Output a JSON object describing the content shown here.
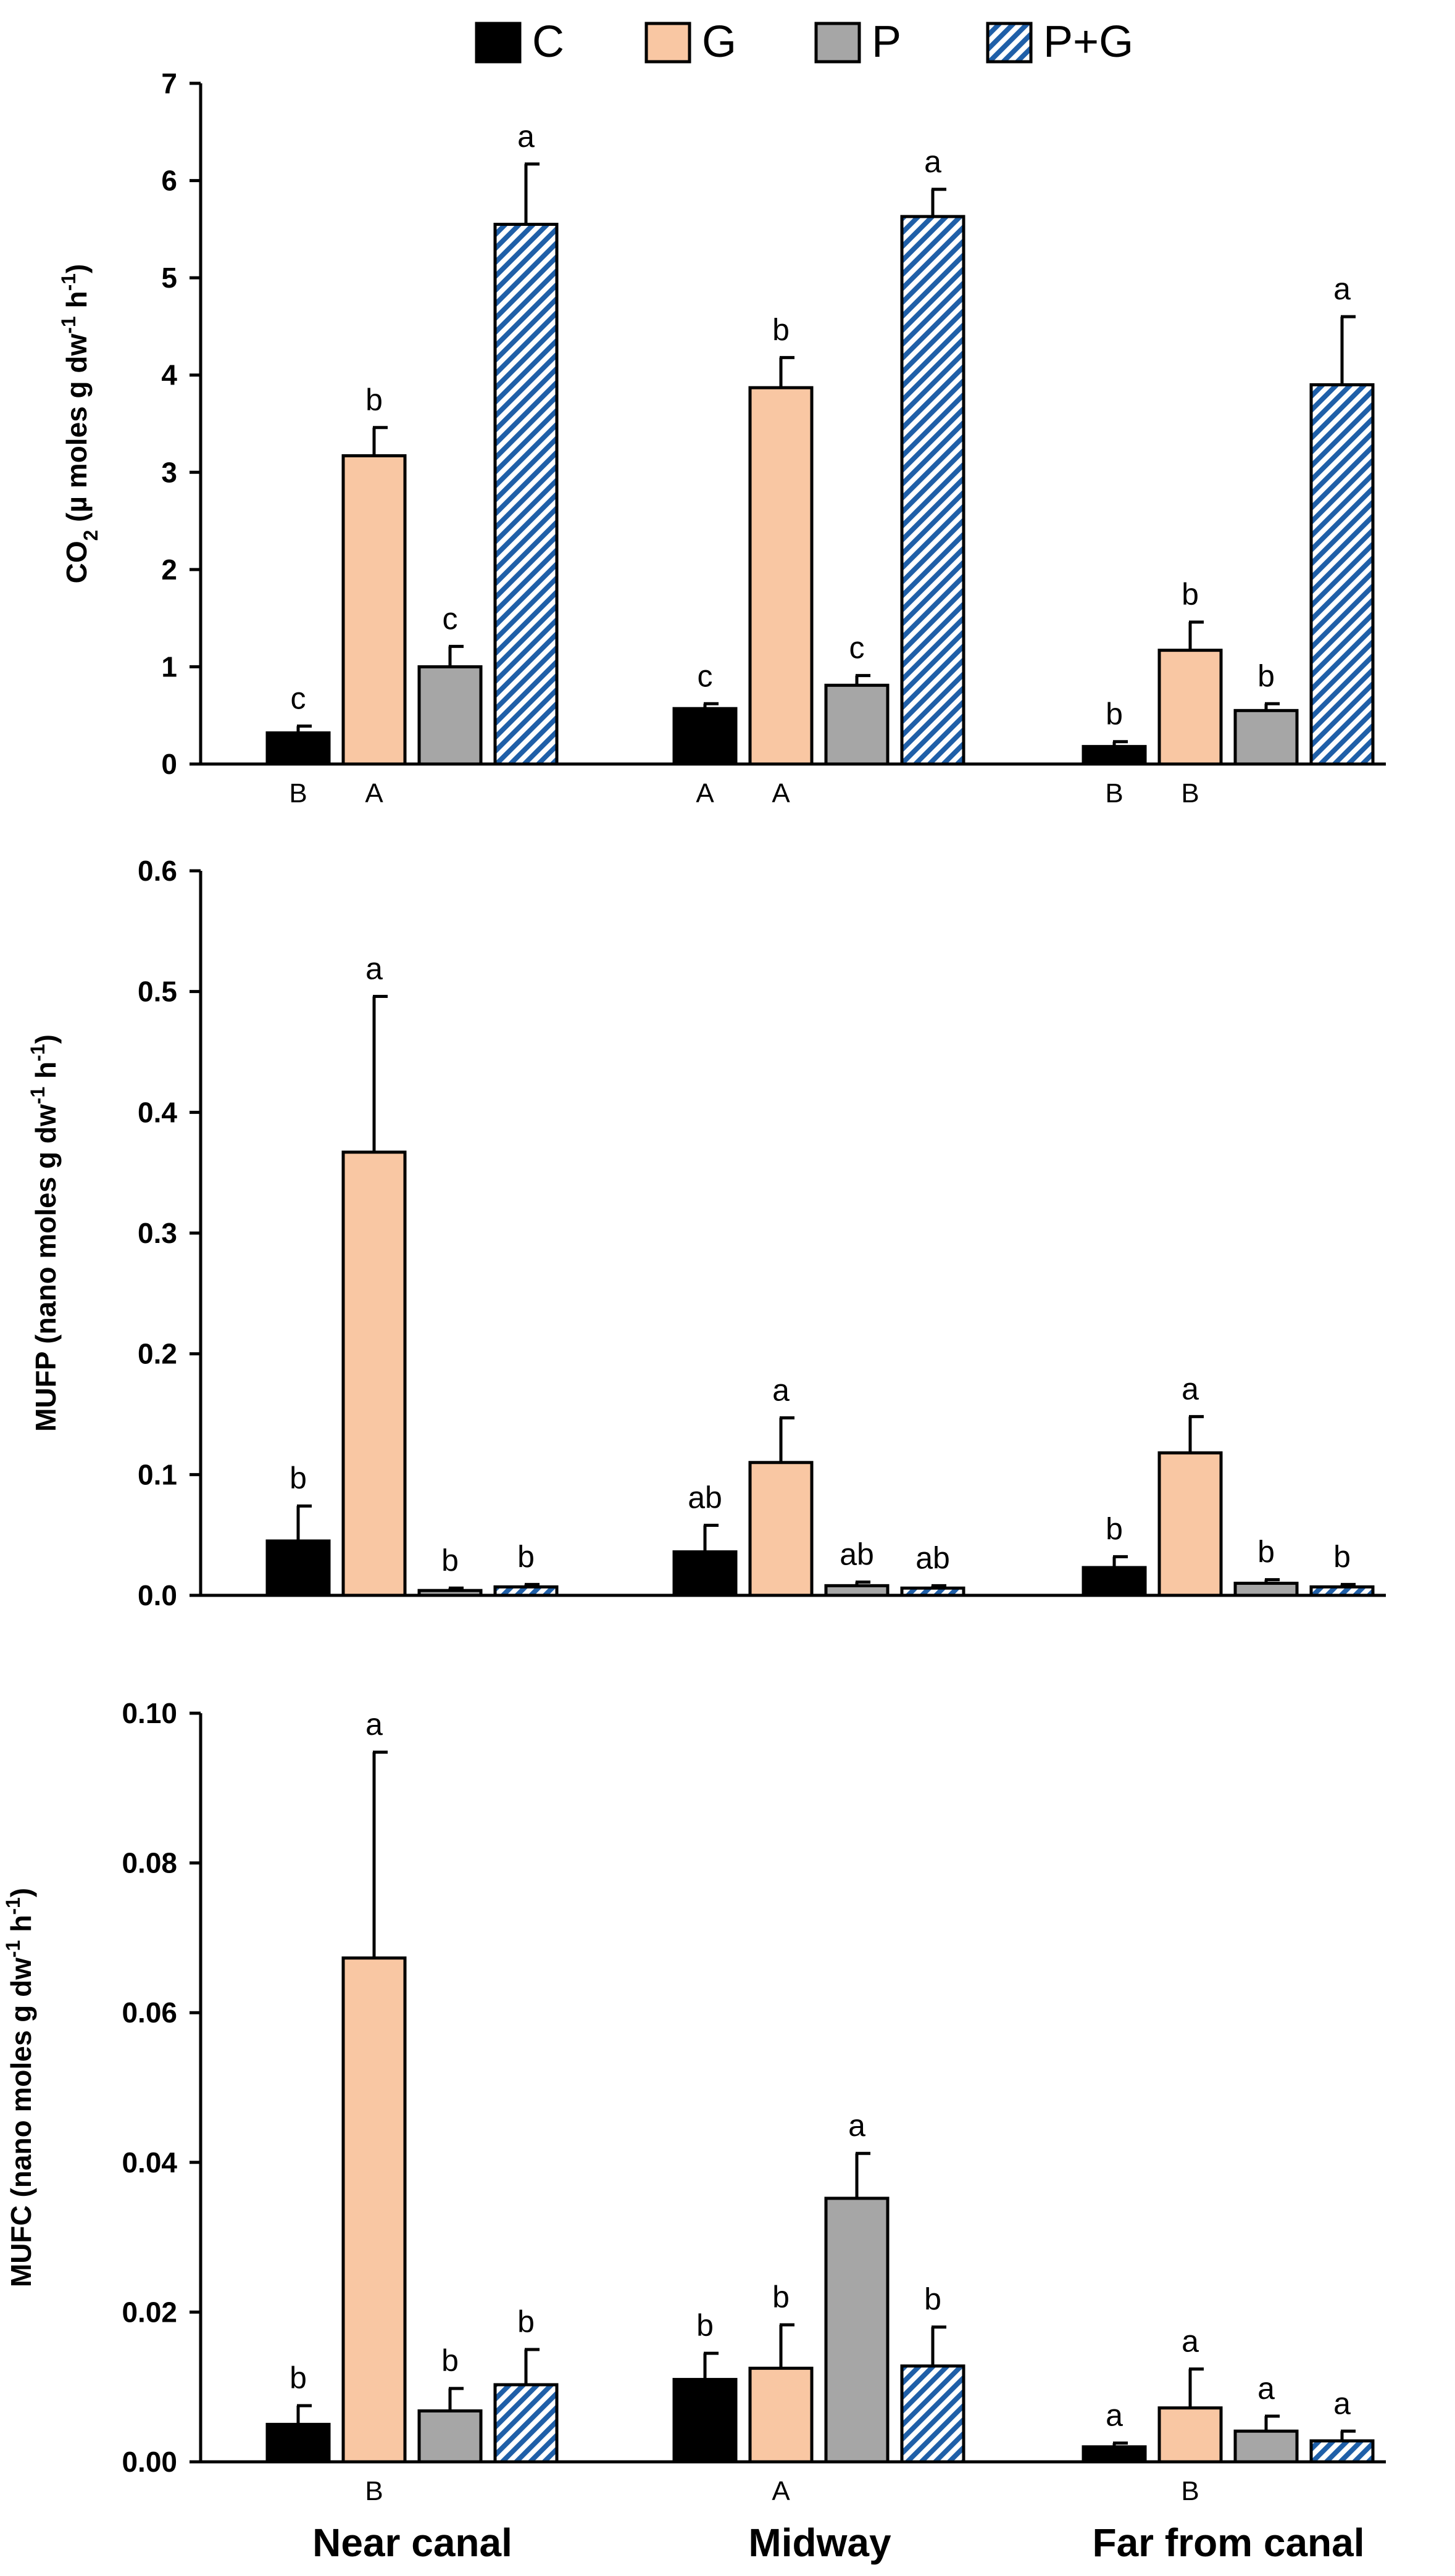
{
  "legend": [
    {
      "name": "C",
      "color": "#000000",
      "pattern": "solid"
    },
    {
      "name": "G",
      "color": "#f9c7a3",
      "pattern": "solid"
    },
    {
      "name": "P",
      "color": "#a6a6a6",
      "pattern": "solid"
    },
    {
      "name": "P+G",
      "color": "#1f5fa8",
      "pattern": "diagonal-hatch"
    }
  ],
  "categories": [
    "Near canal",
    "Midway",
    "Far from canal"
  ],
  "chart_data": [
    {
      "type": "bar",
      "ylabel": "CO2 (µ moles g dw-1 h-1)",
      "ylim": [
        0,
        7
      ],
      "yticks": [
        "0",
        "1",
        "2",
        "3",
        "4",
        "5",
        "6",
        "7"
      ],
      "ytick_values": [
        0,
        1,
        2,
        3,
        4,
        5,
        6,
        7
      ],
      "categories": [
        "Near canal",
        "Midway",
        "Far from canal"
      ],
      "series": [
        {
          "name": "C",
          "values": [
            0.32,
            0.57,
            0.18
          ],
          "errors": [
            0.07,
            0.05,
            0.05
          ],
          "letters": [
            "c",
            "c",
            "b"
          ]
        },
        {
          "name": "G",
          "values": [
            3.17,
            3.87,
            1.17
          ],
          "errors": [
            0.29,
            0.31,
            0.29
          ],
          "letters": [
            "b",
            "b",
            "b"
          ]
        },
        {
          "name": "P",
          "values": [
            1.0,
            0.81,
            0.55
          ],
          "errors": [
            0.21,
            0.1,
            0.07
          ],
          "letters": [
            "c",
            "c",
            "b"
          ]
        },
        {
          "name": "P+G",
          "values": [
            5.55,
            5.63,
            3.9
          ],
          "errors": [
            0.62,
            0.28,
            0.7
          ],
          "letters": [
            "a",
            "a",
            "a"
          ]
        }
      ],
      "group_letters": [
        {
          "category": 0,
          "series": 0,
          "text": "B"
        },
        {
          "category": 0,
          "series": 1,
          "text": "A"
        },
        {
          "category": 1,
          "series": 0,
          "text": "A"
        },
        {
          "category": 1,
          "series": 1,
          "text": "A"
        },
        {
          "category": 2,
          "series": 0,
          "text": "B"
        },
        {
          "category": 2,
          "series": 1,
          "text": "B"
        }
      ]
    },
    {
      "type": "bar",
      "ylabel": "MUFP (nano moles g dw-1 h-1)",
      "ylim": [
        0,
        0.6
      ],
      "yticks": [
        "0.0",
        "0.1",
        "0.2",
        "0.3",
        "0.4",
        "0.5",
        "0.6"
      ],
      "ytick_values": [
        0,
        0.1,
        0.2,
        0.3,
        0.4,
        0.5,
        0.6
      ],
      "categories": [
        "Near canal",
        "Midway",
        "Far from canal"
      ],
      "series": [
        {
          "name": "C",
          "values": [
            0.045,
            0.036,
            0.023
          ],
          "errors": [
            0.029,
            0.022,
            0.009
          ],
          "letters": [
            "b",
            "ab",
            "b"
          ]
        },
        {
          "name": "G",
          "values": [
            0.367,
            0.11,
            0.118
          ],
          "errors": [
            0.129,
            0.037,
            0.03
          ],
          "letters": [
            "a",
            "a",
            "a"
          ]
        },
        {
          "name": "P",
          "values": [
            0.004,
            0.008,
            0.01
          ],
          "errors": [
            0.002,
            0.003,
            0.003
          ],
          "letters": [
            "b",
            "ab",
            "b"
          ]
        },
        {
          "name": "P+G",
          "values": [
            0.007,
            0.006,
            0.007
          ],
          "errors": [
            0.002,
            0.002,
            0.002
          ],
          "letters": [
            "b",
            "ab",
            "b"
          ]
        }
      ],
      "group_letters": []
    },
    {
      "type": "bar",
      "ylabel": "MUFC (nano moles g dw-1 h-1)",
      "ylim": [
        0,
        0.1
      ],
      "yticks": [
        "0.00",
        "0.02",
        "0.04",
        "0.06",
        "0.08",
        "0.10"
      ],
      "ytick_values": [
        0,
        0.02,
        0.04,
        0.06,
        0.08,
        0.1
      ],
      "categories": [
        "Near canal",
        "Midway",
        "Far from canal"
      ],
      "series": [
        {
          "name": "C",
          "values": [
            0.005,
            0.011,
            0.002
          ],
          "errors": [
            0.0025,
            0.0035,
            0.0005
          ],
          "letters": [
            "b",
            "b",
            "a"
          ]
        },
        {
          "name": "G",
          "values": [
            0.0673,
            0.0125,
            0.0072
          ],
          "errors": [
            0.0275,
            0.0058,
            0.0052
          ],
          "letters": [
            "a",
            "b",
            "a"
          ]
        },
        {
          "name": "P",
          "values": [
            0.0068,
            0.0352,
            0.0041
          ],
          "errors": [
            0.003,
            0.006,
            0.002
          ],
          "letters": [
            "b",
            "a",
            "a"
          ]
        },
        {
          "name": "P+G",
          "values": [
            0.0103,
            0.0128,
            0.0028
          ],
          "errors": [
            0.0047,
            0.0052,
            0.0013
          ],
          "letters": [
            "b",
            "b",
            "a"
          ]
        }
      ],
      "group_letters": [
        {
          "category": 0,
          "series": 1,
          "text": "B"
        },
        {
          "category": 1,
          "series": 1,
          "text": "A"
        },
        {
          "category": 2,
          "series": 1,
          "text": "B"
        }
      ]
    }
  ]
}
